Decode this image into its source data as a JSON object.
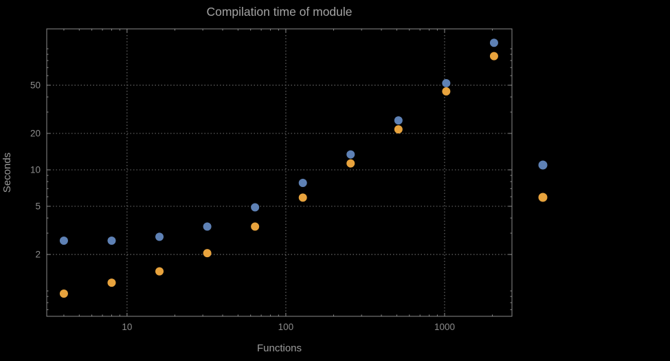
{
  "chart_data": {
    "type": "scatter",
    "title": "Compilation time of module",
    "xlabel": "Functions",
    "ylabel": "Seconds",
    "x_scale": "log",
    "y_scale": "log",
    "xlim": [
      3.12,
      2656
    ],
    "ylim": [
      0.617,
      146
    ],
    "x_ticks": [
      10,
      100,
      1000
    ],
    "y_ticks": [
      2,
      5,
      10,
      20,
      50
    ],
    "grid": true,
    "grid_style": "dotted",
    "x": [
      4,
      8,
      16,
      32,
      64,
      128,
      256,
      512,
      1024,
      2048
    ],
    "series": [
      {
        "name": "blue",
        "color": "#5E81B5",
        "values": [
          2.6,
          2.6,
          2.8,
          3.4,
          4.9,
          7.8,
          13.4,
          25.6,
          52,
          112
        ]
      },
      {
        "name": "orange",
        "color": "#E8A33D",
        "values": [
          0.95,
          1.17,
          1.45,
          2.05,
          3.4,
          5.9,
          11.3,
          21.6,
          44.5,
          87
        ]
      }
    ],
    "legend": {
      "position": "outside-right-center",
      "entries": [
        {
          "color": "#5E81B5"
        },
        {
          "color": "#E8A33D"
        }
      ]
    }
  },
  "colors": {
    "background": "#000000",
    "frame": "#8C8C8C",
    "grid": "#737373",
    "title_text": "#A3A3A3",
    "label_text": "#9B9B9B",
    "tick_text": "#8C8C8C"
  }
}
